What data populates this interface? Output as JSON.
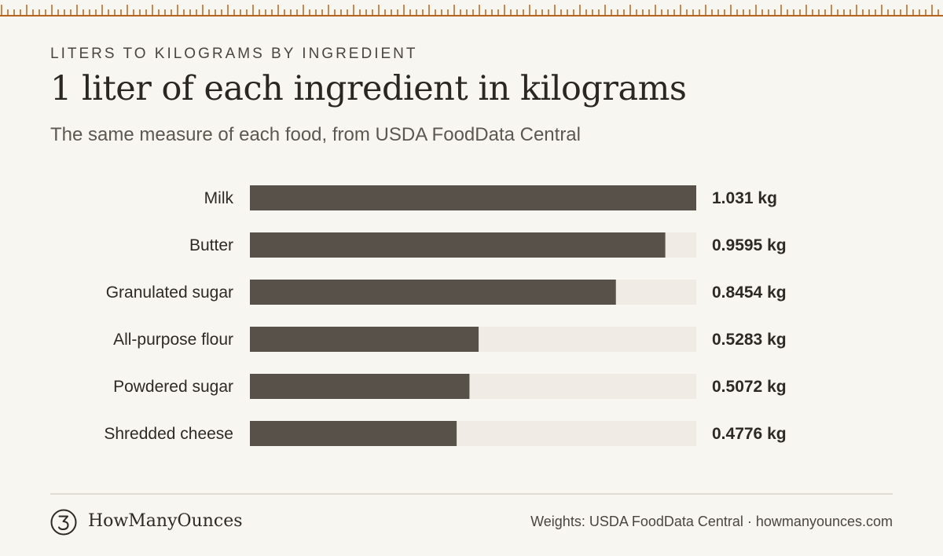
{
  "header": {
    "kicker": "LITERS TO KILOGRAMS BY INGREDIENT",
    "title": "1 liter of each ingredient in kilograms",
    "subtitle": "The same measure of each food, from USDA FoodData Central"
  },
  "chart_data": {
    "type": "bar",
    "orientation": "horizontal",
    "categories": [
      "Milk",
      "Butter",
      "Granulated sugar",
      "All-purpose flour",
      "Powdered sugar",
      "Shredded cheese"
    ],
    "values": [
      1.031,
      0.9595,
      0.8454,
      0.5283,
      0.5072,
      0.4776
    ],
    "value_labels": [
      "1.031 kg",
      "0.9595 kg",
      "0.8454 kg",
      "0.5283 kg",
      "0.5072 kg",
      "0.4776 kg"
    ],
    "unit": "kg",
    "xlim": [
      0,
      1.031
    ],
    "grid": false,
    "legend": "none",
    "colors": {
      "bar": "#57514a",
      "track": "#f0ece5"
    }
  },
  "footer": {
    "brand": "HowManyOunces",
    "source": "Weights: USDA FoodData Central · howmanyounces.com"
  },
  "theme": {
    "background": "#f8f6f1",
    "ruler": "#b5651d",
    "logo_icon": "number-3-circle-icon"
  }
}
